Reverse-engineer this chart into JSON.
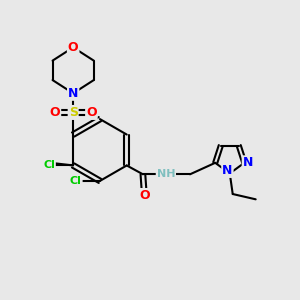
{
  "bg_color": "#e8e8e8",
  "bond_color": "#000000",
  "bond_width": 1.5,
  "atom_colors": {
    "C": "#000000",
    "H": "#7fbfbf",
    "N": "#0000ff",
    "O": "#ff0000",
    "S": "#cccc00",
    "Cl": "#00cc00"
  }
}
